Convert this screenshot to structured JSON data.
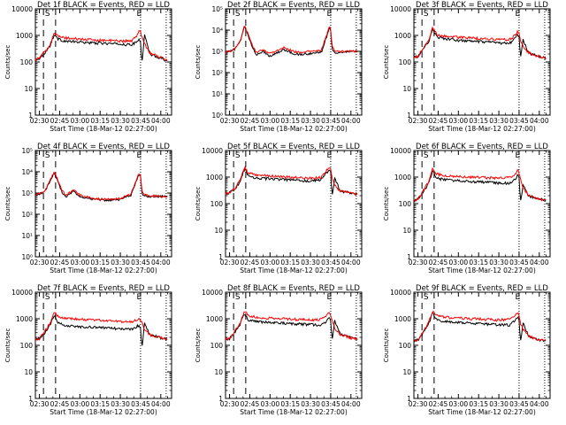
{
  "figure": {
    "xlabel_prefix": "Start Time",
    "start_time": "18-Mar-12 02:27:00",
    "x_tick_labels": [
      "02:30",
      "02:45",
      "03:00",
      "03:15",
      "03:30",
      "03:45",
      "04:00"
    ],
    "y_label": "Counts/sec",
    "event_markers": {
      "start": "S",
      "end": "E"
    }
  },
  "chart_data": [
    {
      "type": "line",
      "title": "Det 1f BLACK = Events, RED = LLD",
      "xlabel": "Start Time (18-Mar-12 02:27:00)",
      "ylabel": "Counts/sec",
      "yscale": "log",
      "ylim": [
        1,
        10000
      ],
      "y_tick_labels": [
        "1",
        "10",
        "100",
        "1000",
        "10000"
      ],
      "x_minutes_from_0230": [
        -3,
        0,
        4,
        8,
        11,
        14,
        17,
        20,
        25,
        30,
        40,
        50,
        60,
        68,
        72,
        74,
        75,
        76,
        78,
        82,
        90,
        95
      ],
      "series": [
        {
          "name": "BLACK = Events",
          "color": "#000000",
          "values": [
            120,
            140,
            220,
            420,
            1100,
            720,
            650,
            600,
            580,
            560,
            520,
            500,
            470,
            440,
            560,
            700,
            550,
            100,
            1000,
            200,
            140,
            110
          ]
        },
        {
          "name": "RED = LLD",
          "color": "#ff0000",
          "values": [
            120,
            140,
            240,
            480,
            1300,
            900,
            850,
            800,
            760,
            720,
            680,
            650,
            620,
            620,
            900,
            1500,
            1400,
            900,
            500,
            220,
            150,
            120
          ]
        }
      ]
    },
    {
      "type": "line",
      "title": "Det 2f BLACK = Events, RED = LLD",
      "xlabel": "Start Time (18-Mar-12 02:27:00)",
      "ylabel": "Counts/sec",
      "yscale": "log",
      "ylim": [
        1,
        100000
      ],
      "y_tick_labels": [
        "10⁰",
        "10¹",
        "10²",
        "10³",
        "10⁴",
        "10⁵"
      ],
      "x_minutes_from_0230": [
        -3,
        0,
        4,
        8,
        11,
        14,
        17,
        20,
        25,
        30,
        40,
        50,
        60,
        68,
        72,
        74,
        75,
        76,
        78,
        82,
        90,
        95
      ],
      "series": [
        {
          "name": "BLACK = Events",
          "color": "#000000",
          "values": [
            900,
            1000,
            1300,
            3000,
            15000,
            5000,
            1500,
            700,
            1000,
            600,
            1200,
            700,
            800,
            900,
            5000,
            14000,
            9000,
            1500,
            800,
            900,
            1000,
            1000
          ]
        },
        {
          "name": "RED = LLD",
          "color": "#ff0000",
          "values": [
            900,
            1000,
            1300,
            3200,
            16000,
            6000,
            1800,
            900,
            1200,
            800,
            1500,
            900,
            1000,
            1100,
            6000,
            16000,
            10000,
            1800,
            1000,
            1000,
            1000,
            1000
          ]
        }
      ]
    },
    {
      "type": "line",
      "title": "Det 3f BLACK = Events, RED = LLD",
      "xlabel": "Start Time (18-Mar-12 02:27:00)",
      "ylabel": "Counts/sec",
      "yscale": "log",
      "ylim": [
        1,
        10000
      ],
      "y_tick_labels": [
        "1",
        "10",
        "100",
        "1000",
        "10000"
      ],
      "x_minutes_from_0230": [
        -3,
        0,
        4,
        8,
        11,
        14,
        17,
        20,
        25,
        30,
        40,
        50,
        60,
        68,
        72,
        74,
        75,
        76,
        78,
        82,
        90,
        95
      ],
      "series": [
        {
          "name": "BLACK = Events",
          "color": "#000000",
          "values": [
            150,
            160,
            300,
            600,
            1800,
            900,
            800,
            750,
            700,
            650,
            600,
            560,
            520,
            500,
            800,
            1100,
            900,
            150,
            700,
            220,
            160,
            140
          ]
        },
        {
          "name": "RED = LLD",
          "color": "#ff0000",
          "values": [
            150,
            160,
            320,
            700,
            2000,
            1100,
            1000,
            950,
            900,
            850,
            800,
            750,
            700,
            700,
            1000,
            1500,
            1200,
            600,
            400,
            220,
            160,
            140
          ]
        }
      ]
    },
    {
      "type": "line",
      "title": "Det 4f BLACK = Events, RED = LLD",
      "xlabel": "Start Time (18-Mar-12 02:27:00)",
      "ylabel": "Counts/sec",
      "yscale": "log",
      "ylim": [
        1,
        100000
      ],
      "y_tick_labels": [
        "10⁰",
        "10¹",
        "10²",
        "10³",
        "10⁴",
        "10⁵"
      ],
      "x_minutes_from_0230": [
        -3,
        0,
        4,
        8,
        11,
        14,
        17,
        20,
        25,
        30,
        40,
        50,
        60,
        68,
        72,
        74,
        75,
        76,
        78,
        82,
        90,
        95
      ],
      "series": [
        {
          "name": "BLACK = Events",
          "color": "#000000",
          "values": [
            800,
            900,
            1200,
            3500,
            9000,
            3000,
            1000,
            700,
            1200,
            700,
            500,
            450,
            500,
            800,
            4000,
            8000,
            6000,
            1000,
            700,
            700,
            700,
            700
          ]
        },
        {
          "name": "RED = LLD",
          "color": "#ff0000",
          "values": [
            800,
            900,
            1300,
            4000,
            10000,
            3500,
            1200,
            800,
            1400,
            800,
            550,
            500,
            550,
            900,
            4500,
            9000,
            6500,
            1200,
            800,
            750,
            700,
            700
          ]
        }
      ]
    },
    {
      "type": "line",
      "title": "Det 5f BLACK = Events, RED = LLD",
      "xlabel": "Start Time (18-Mar-12 02:27:00)",
      "ylabel": "Counts/sec",
      "yscale": "log",
      "ylim": [
        1,
        10000
      ],
      "y_tick_labels": [
        "1",
        "10",
        "100",
        "1000",
        "10000"
      ],
      "x_minutes_from_0230": [
        -3,
        0,
        4,
        8,
        11,
        14,
        17,
        20,
        25,
        30,
        40,
        50,
        60,
        68,
        72,
        74,
        75,
        76,
        78,
        82,
        90,
        95
      ],
      "series": [
        {
          "name": "BLACK = Events",
          "color": "#000000",
          "values": [
            250,
            260,
            350,
            700,
            2000,
            1200,
            1000,
            950,
            900,
            850,
            800,
            750,
            700,
            800,
            1400,
            1900,
            1500,
            200,
            900,
            300,
            250,
            230
          ]
        },
        {
          "name": "RED = LLD",
          "color": "#ff0000",
          "values": [
            250,
            260,
            380,
            800,
            2300,
            1400,
            1300,
            1200,
            1150,
            1100,
            1000,
            950,
            900,
            1000,
            1800,
            2300,
            1900,
            900,
            500,
            300,
            250,
            230
          ]
        }
      ]
    },
    {
      "type": "line",
      "title": "Det 6f BLACK = Events, RED = LLD",
      "xlabel": "Start Time (18-Mar-12 02:27:00)",
      "ylabel": "Counts/sec",
      "yscale": "log",
      "ylim": [
        1,
        10000
      ],
      "y_tick_labels": [
        "1",
        "10",
        "100",
        "1000",
        "10000"
      ],
      "x_minutes_from_0230": [
        -3,
        0,
        4,
        8,
        11,
        14,
        17,
        20,
        25,
        30,
        40,
        50,
        60,
        68,
        72,
        74,
        75,
        76,
        78,
        82,
        90,
        95
      ],
      "series": [
        {
          "name": "BLACK = Events",
          "color": "#000000",
          "values": [
            130,
            150,
            280,
            600,
            1800,
            900,
            850,
            800,
            760,
            720,
            680,
            650,
            600,
            580,
            800,
            1200,
            900,
            120,
            500,
            200,
            150,
            130
          ]
        },
        {
          "name": "RED = LLD",
          "color": "#ff0000",
          "values": [
            130,
            150,
            300,
            700,
            2100,
            1300,
            1200,
            1150,
            1100,
            1050,
            1000,
            950,
            900,
            950,
            1300,
            1800,
            1500,
            800,
            400,
            200,
            150,
            130
          ]
        }
      ]
    },
    {
      "type": "line",
      "title": "Det 7f BLACK = Events, RED = LLD",
      "xlabel": "Start Time (18-Mar-12 02:27:00)",
      "ylabel": "Counts/sec",
      "yscale": "log",
      "ylim": [
        1,
        10000
      ],
      "y_tick_labels": [
        "1",
        "10",
        "100",
        "1000",
        "10000"
      ],
      "x_minutes_from_0230": [
        -3,
        0,
        4,
        8,
        11,
        14,
        17,
        20,
        25,
        30,
        40,
        50,
        60,
        68,
        72,
        74,
        75,
        76,
        78,
        82,
        90,
        95
      ],
      "series": [
        {
          "name": "BLACK = Events",
          "color": "#000000",
          "values": [
            170,
            180,
            300,
            600,
            1300,
            700,
            600,
            550,
            520,
            500,
            480,
            450,
            420,
            400,
            500,
            600,
            400,
            80,
            700,
            250,
            190,
            170
          ]
        },
        {
          "name": "RED = LLD",
          "color": "#ff0000",
          "values": [
            170,
            180,
            330,
            700,
            1700,
            1200,
            1100,
            1050,
            1000,
            950,
            900,
            850,
            800,
            750,
            900,
            1100,
            900,
            700,
            400,
            250,
            190,
            170
          ]
        }
      ]
    },
    {
      "type": "line",
      "title": "Det 8f BLACK = Events, RED = LLD",
      "xlabel": "Start Time (18-Mar-12 02:27:00)",
      "ylabel": "Counts/sec",
      "yscale": "log",
      "ylim": [
        1,
        10000
      ],
      "y_tick_labels": [
        "1",
        "10",
        "100",
        "1000",
        "10000"
      ],
      "x_minutes_from_0230": [
        -3,
        0,
        4,
        8,
        11,
        14,
        17,
        20,
        25,
        30,
        40,
        50,
        60,
        68,
        72,
        74,
        75,
        76,
        78,
        82,
        90,
        95
      ],
      "series": [
        {
          "name": "BLACK = Events",
          "color": "#000000",
          "values": [
            170,
            180,
            320,
            650,
            1600,
            900,
            850,
            800,
            750,
            720,
            680,
            640,
            600,
            580,
            800,
            1100,
            900,
            150,
            900,
            260,
            190,
            170
          ]
        },
        {
          "name": "RED = LLD",
          "color": "#ff0000",
          "values": [
            170,
            180,
            350,
            750,
            2000,
            1300,
            1200,
            1150,
            1100,
            1050,
            1000,
            950,
            900,
            950,
            1300,
            1700,
            1400,
            800,
            450,
            260,
            190,
            170
          ]
        }
      ]
    },
    {
      "type": "line",
      "title": "Det 9f BLACK = Events, RED = LLD",
      "xlabel": "Start Time (18-Mar-12 02:27:00)",
      "ylabel": "Counts/sec",
      "yscale": "log",
      "ylim": [
        1,
        10000
      ],
      "y_tick_labels": [
        "1",
        "10",
        "100",
        "1000",
        "10000"
      ],
      "x_minutes_from_0230": [
        -3,
        0,
        4,
        8,
        11,
        14,
        17,
        20,
        25,
        30,
        40,
        50,
        60,
        68,
        72,
        74,
        75,
        76,
        78,
        82,
        90,
        95
      ],
      "series": [
        {
          "name": "BLACK = Events",
          "color": "#000000",
          "values": [
            150,
            160,
            300,
            650,
            1700,
            900,
            850,
            800,
            760,
            720,
            680,
            640,
            600,
            580,
            850,
            1200,
            950,
            130,
            700,
            220,
            160,
            150
          ]
        },
        {
          "name": "RED = LLD",
          "color": "#ff0000",
          "values": [
            150,
            160,
            330,
            750,
            2000,
            1300,
            1200,
            1150,
            1100,
            1050,
            1000,
            950,
            900,
            950,
            1300,
            1700,
            1400,
            700,
            400,
            220,
            160,
            150
          ]
        }
      ]
    }
  ]
}
